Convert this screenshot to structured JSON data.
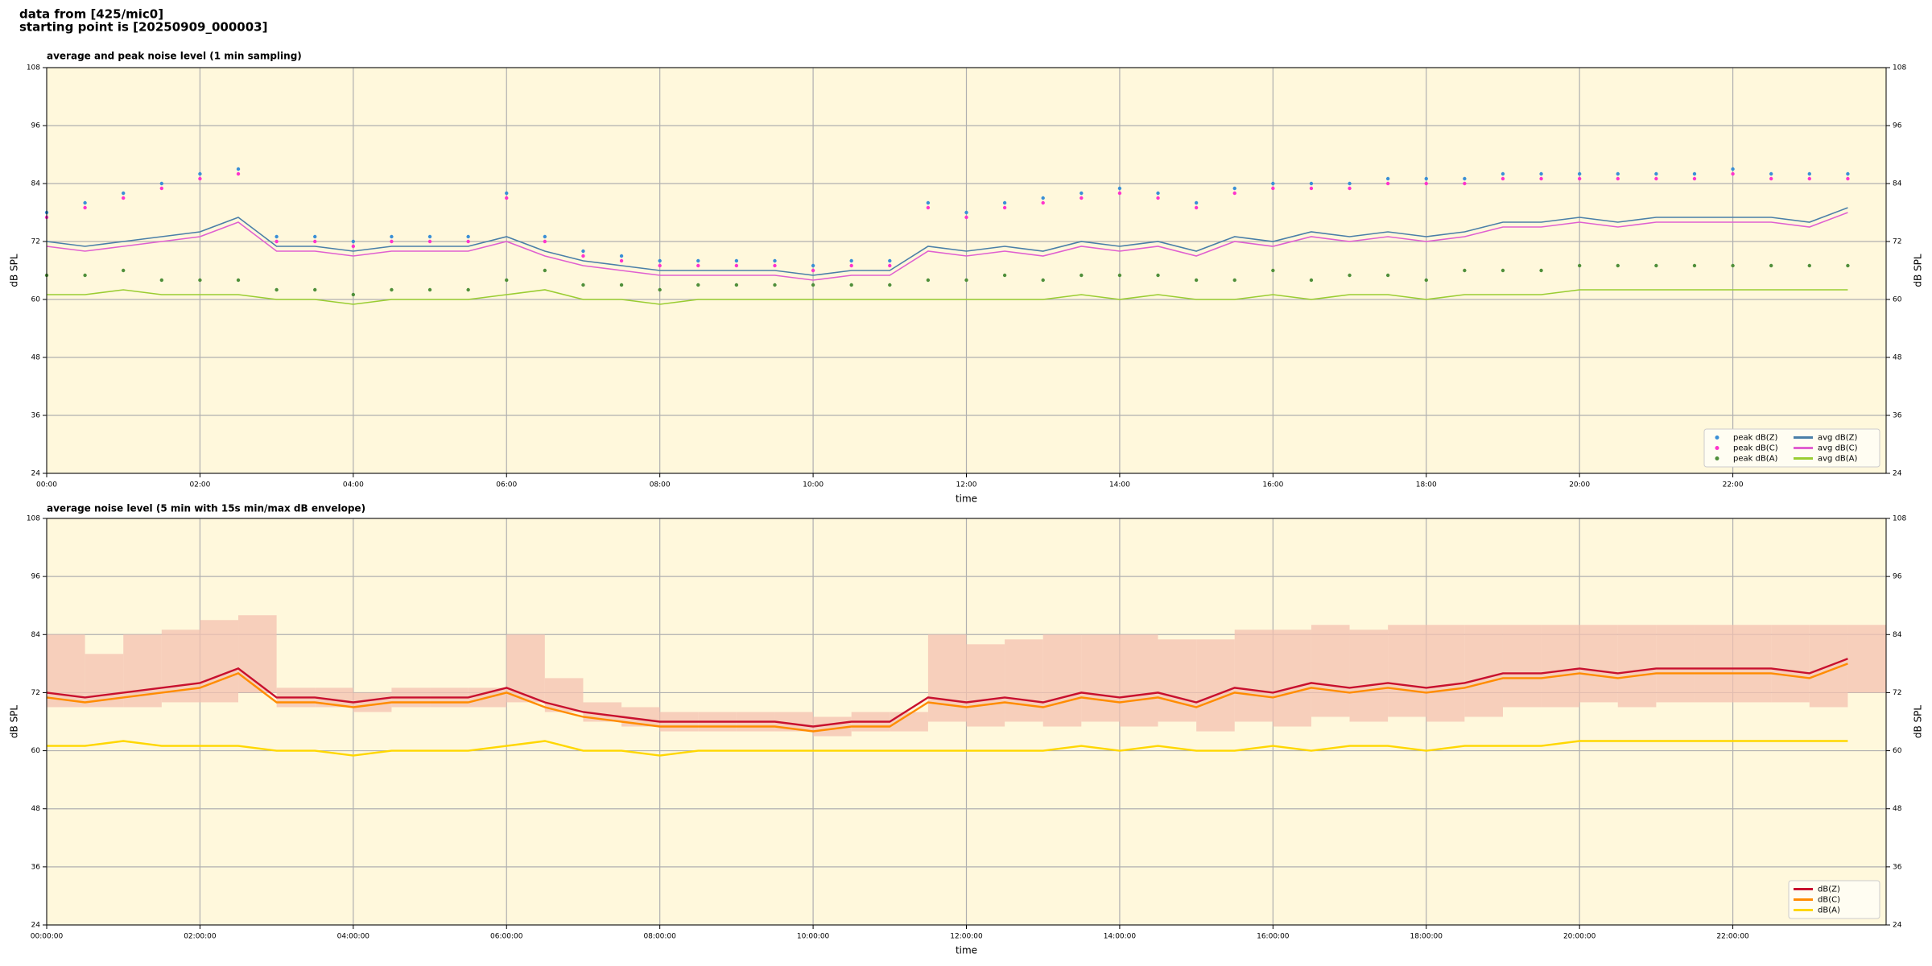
{
  "header": {
    "line1": "data from [425/mic0]",
    "line2": "starting point is [20250909_000003]"
  },
  "chart_data": [
    {
      "type": "line",
      "title": "average and peak noise level (1 min sampling)",
      "xlabel": "time",
      "ylabel": "dB SPL",
      "background": "#fff8dc",
      "grid": true,
      "legend": "lower right",
      "legend_rows": 3,
      "x": [
        "00:00",
        "00:30",
        "01:00",
        "01:30",
        "02:00",
        "02:30",
        "03:00",
        "03:30",
        "04:00",
        "04:30",
        "05:00",
        "05:30",
        "06:00",
        "06:30",
        "07:00",
        "07:30",
        "08:00",
        "08:30",
        "09:00",
        "09:30",
        "10:00",
        "10:30",
        "11:00",
        "11:30",
        "12:00",
        "12:30",
        "13:00",
        "13:30",
        "14:00",
        "14:30",
        "15:00",
        "15:30",
        "16:00",
        "16:30",
        "17:00",
        "17:30",
        "18:00",
        "18:30",
        "19:00",
        "19:30",
        "20:00",
        "20:30",
        "21:00",
        "21:30",
        "22:00",
        "22:30",
        "23:00",
        "23:30"
      ],
      "xlim": [
        "00:00",
        "24:00"
      ],
      "xticks": [
        "00:00",
        "02:00",
        "04:00",
        "06:00",
        "08:00",
        "10:00",
        "12:00",
        "14:00",
        "16:00",
        "18:00",
        "20:00",
        "22:00"
      ],
      "ylim": [
        24,
        108
      ],
      "yticks": [
        24,
        36,
        48,
        60,
        72,
        84,
        96,
        108
      ],
      "series": [
        {
          "name": "peak dB(Z)",
          "type": "scatter",
          "color": "#3a8fd6",
          "values": [
            78,
            80,
            82,
            84,
            86,
            87,
            73,
            73,
            72,
            73,
            73,
            73,
            82,
            73,
            70,
            69,
            68,
            68,
            68,
            68,
            67,
            68,
            68,
            80,
            78,
            80,
            81,
            82,
            83,
            82,
            80,
            83,
            84,
            84,
            84,
            85,
            85,
            85,
            86,
            86,
            86,
            86,
            86,
            86,
            87,
            86,
            86,
            86
          ]
        },
        {
          "name": "peak dB(C)",
          "type": "scatter",
          "color": "#ff33cc",
          "values": [
            77,
            79,
            81,
            83,
            85,
            86,
            72,
            72,
            71,
            72,
            72,
            72,
            81,
            72,
            69,
            68,
            67,
            67,
            67,
            67,
            66,
            67,
            67,
            79,
            77,
            79,
            80,
            81,
            82,
            81,
            79,
            82,
            83,
            83,
            83,
            84,
            84,
            84,
            85,
            85,
            85,
            85,
            85,
            85,
            86,
            85,
            85,
            85
          ]
        },
        {
          "name": "peak dB(A)",
          "type": "scatter",
          "color": "#4f8f3a",
          "values": [
            65,
            65,
            66,
            64,
            64,
            64,
            62,
            62,
            61,
            62,
            62,
            62,
            64,
            66,
            63,
            63,
            62,
            63,
            63,
            63,
            63,
            63,
            63,
            64,
            64,
            65,
            64,
            65,
            65,
            65,
            64,
            64,
            66,
            64,
            65,
            65,
            64,
            66,
            66,
            66,
            67,
            67,
            67,
            67,
            67,
            67,
            67,
            67
          ]
        },
        {
          "name": "avg dB(Z)",
          "type": "line",
          "color": "#4a7fa8",
          "values": [
            72,
            71,
            72,
            73,
            74,
            77,
            71,
            71,
            70,
            71,
            71,
            71,
            73,
            70,
            68,
            67,
            66,
            66,
            66,
            66,
            65,
            66,
            66,
            71,
            70,
            71,
            70,
            72,
            71,
            72,
            70,
            73,
            72,
            74,
            73,
            74,
            73,
            74,
            76,
            76,
            77,
            76,
            77,
            77,
            77,
            77,
            76,
            79
          ]
        },
        {
          "name": "avg dB(C)",
          "type": "line",
          "color": "#e060d0",
          "values": [
            71,
            70,
            71,
            72,
            73,
            76,
            70,
            70,
            69,
            70,
            70,
            70,
            72,
            69,
            67,
            66,
            65,
            65,
            65,
            65,
            64,
            65,
            65,
            70,
            69,
            70,
            69,
            71,
            70,
            71,
            69,
            72,
            71,
            73,
            72,
            73,
            72,
            73,
            75,
            75,
            76,
            75,
            76,
            76,
            76,
            76,
            75,
            78
          ]
        },
        {
          "name": "avg dB(A)",
          "type": "line",
          "color": "#9acd32",
          "values": [
            61,
            61,
            62,
            61,
            61,
            61,
            60,
            60,
            59,
            60,
            60,
            60,
            61,
            62,
            60,
            60,
            59,
            60,
            60,
            60,
            60,
            60,
            60,
            60,
            60,
            60,
            60,
            61,
            60,
            61,
            60,
            60,
            61,
            60,
            61,
            61,
            60,
            61,
            61,
            61,
            62,
            62,
            62,
            62,
            62,
            62,
            62,
            62
          ]
        }
      ]
    },
    {
      "type": "line",
      "title": "average noise level (5 min with 15s min/max dB envelope)",
      "xlabel": "time",
      "ylabel": "dB SPL",
      "background": "#fff8dc",
      "grid": true,
      "legend": "lower right",
      "legend_rows": 3,
      "x": [
        "00:00",
        "00:30",
        "01:00",
        "01:30",
        "02:00",
        "02:30",
        "03:00",
        "03:30",
        "04:00",
        "04:30",
        "05:00",
        "05:30",
        "06:00",
        "06:30",
        "07:00",
        "07:30",
        "08:00",
        "08:30",
        "09:00",
        "09:30",
        "10:00",
        "10:30",
        "11:00",
        "11:30",
        "12:00",
        "12:30",
        "13:00",
        "13:30",
        "14:00",
        "14:30",
        "15:00",
        "15:30",
        "16:00",
        "16:30",
        "17:00",
        "17:30",
        "18:00",
        "18:30",
        "19:00",
        "19:30",
        "20:00",
        "20:30",
        "21:00",
        "21:30",
        "22:00",
        "22:30",
        "23:00",
        "23:30"
      ],
      "xlim": [
        "00:00",
        "24:00"
      ],
      "xticks": [
        "00:00:00",
        "02:00:00",
        "04:00:00",
        "06:00:00",
        "08:00:00",
        "10:00:00",
        "12:00:00",
        "14:00:00",
        "16:00:00",
        "18:00:00",
        "20:00:00",
        "22:00:00"
      ],
      "ylim": [
        24,
        108
      ],
      "yticks": [
        24,
        36,
        48,
        60,
        72,
        84,
        96,
        108
      ],
      "envelope": {
        "color": "#f4c2b0",
        "min": [
          69,
          69,
          69,
          70,
          70,
          72,
          69,
          69,
          68,
          69,
          69,
          69,
          70,
          68,
          66,
          65,
          64,
          64,
          64,
          64,
          63,
          64,
          64,
          66,
          65,
          66,
          65,
          66,
          65,
          66,
          64,
          66,
          65,
          67,
          66,
          67,
          66,
          67,
          69,
          69,
          70,
          69,
          70,
          70,
          70,
          70,
          69,
          72
        ],
        "max": [
          84,
          80,
          84,
          85,
          87,
          88,
          73,
          73,
          72,
          73,
          73,
          73,
          84,
          75,
          70,
          69,
          68,
          68,
          68,
          68,
          67,
          68,
          68,
          84,
          82,
          83,
          84,
          84,
          84,
          83,
          83,
          85,
          85,
          86,
          85,
          86,
          86,
          86,
          86,
          86,
          86,
          86,
          86,
          86,
          86,
          86,
          86,
          86
        ]
      },
      "series": [
        {
          "name": "dB(Z)",
          "type": "line",
          "color": "#c8102e",
          "values": [
            72,
            71,
            72,
            73,
            74,
            77,
            71,
            71,
            70,
            71,
            71,
            71,
            73,
            70,
            68,
            67,
            66,
            66,
            66,
            66,
            65,
            66,
            66,
            71,
            70,
            71,
            70,
            72,
            71,
            72,
            70,
            73,
            72,
            74,
            73,
            74,
            73,
            74,
            76,
            76,
            77,
            76,
            77,
            77,
            77,
            77,
            76,
            79
          ]
        },
        {
          "name": "dB(C)",
          "type": "line",
          "color": "#ff8c00",
          "values": [
            71,
            70,
            71,
            72,
            73,
            76,
            70,
            70,
            69,
            70,
            70,
            70,
            72,
            69,
            67,
            66,
            65,
            65,
            65,
            65,
            64,
            65,
            65,
            70,
            69,
            70,
            69,
            71,
            70,
            71,
            69,
            72,
            71,
            73,
            72,
            73,
            72,
            73,
            75,
            75,
            76,
            75,
            76,
            76,
            76,
            76,
            75,
            78
          ]
        },
        {
          "name": "dB(A)",
          "type": "line",
          "color": "#ffd700",
          "values": [
            61,
            61,
            62,
            61,
            61,
            61,
            60,
            60,
            59,
            60,
            60,
            60,
            61,
            62,
            60,
            60,
            59,
            60,
            60,
            60,
            60,
            60,
            60,
            60,
            60,
            60,
            60,
            61,
            60,
            61,
            60,
            60,
            61,
            60,
            61,
            61,
            60,
            61,
            61,
            61,
            62,
            62,
            62,
            62,
            62,
            62,
            62,
            62
          ]
        }
      ]
    }
  ]
}
